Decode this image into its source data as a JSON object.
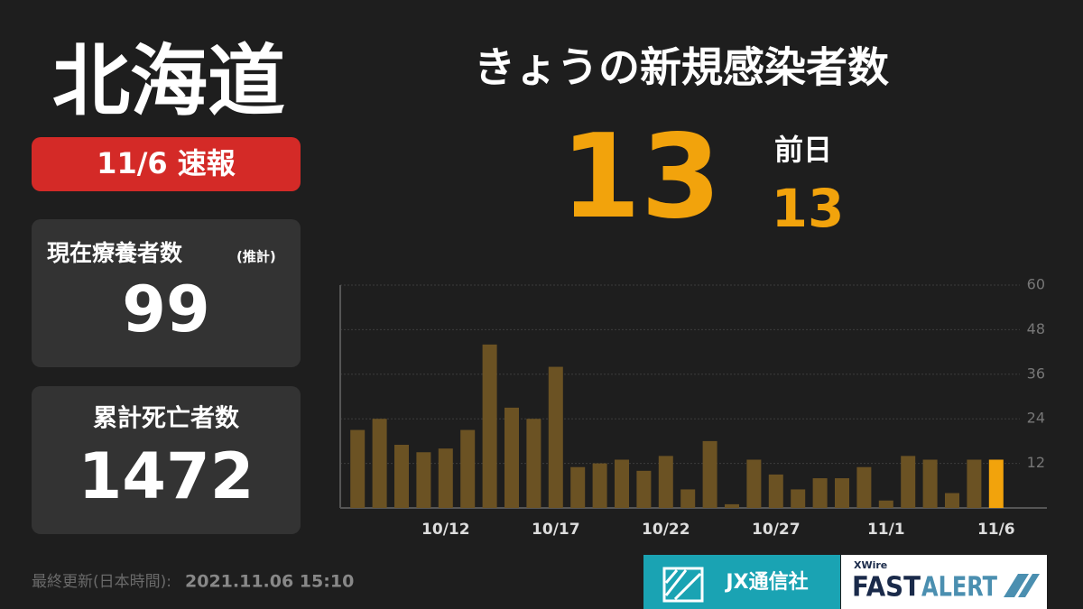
{
  "header": {
    "region": "北海道",
    "badge": "11/6 速報",
    "headline": "きょうの新規感染者数",
    "today": 13,
    "previous_label": "前日",
    "previous": 13
  },
  "panels": [
    {
      "title": "現在療養者数",
      "note": "(推計)",
      "value": 99
    },
    {
      "title": "累計死亡者数",
      "value": 1472
    }
  ],
  "footer": {
    "updated_label": "最終更新(日本時間):",
    "updated": "2021.11.06 15:10",
    "brand": "JX通信社",
    "product_tag": "XWire",
    "product_a": "FAST",
    "product_b": "ALERT"
  },
  "chart_data": {
    "type": "bar",
    "categories": [
      null,
      null,
      null,
      null,
      "10/12",
      null,
      null,
      null,
      null,
      "10/17",
      null,
      null,
      null,
      null,
      "10/22",
      null,
      null,
      null,
      null,
      "10/27",
      null,
      null,
      null,
      null,
      "11/1",
      null,
      null,
      null,
      null,
      "11/6"
    ],
    "values": [
      21,
      24,
      17,
      15,
      16,
      21,
      44,
      27,
      24,
      38,
      11,
      12,
      13,
      10,
      14,
      5,
      18,
      1,
      13,
      9,
      5,
      8,
      8,
      11,
      2,
      14,
      13,
      4,
      13,
      13
    ],
    "color": "#6b5223",
    "highlight_color": "#f2a30c",
    "ylim": [
      0,
      60
    ],
    "yticks": [
      12,
      24,
      36,
      48,
      60
    ],
    "grid": true
  }
}
